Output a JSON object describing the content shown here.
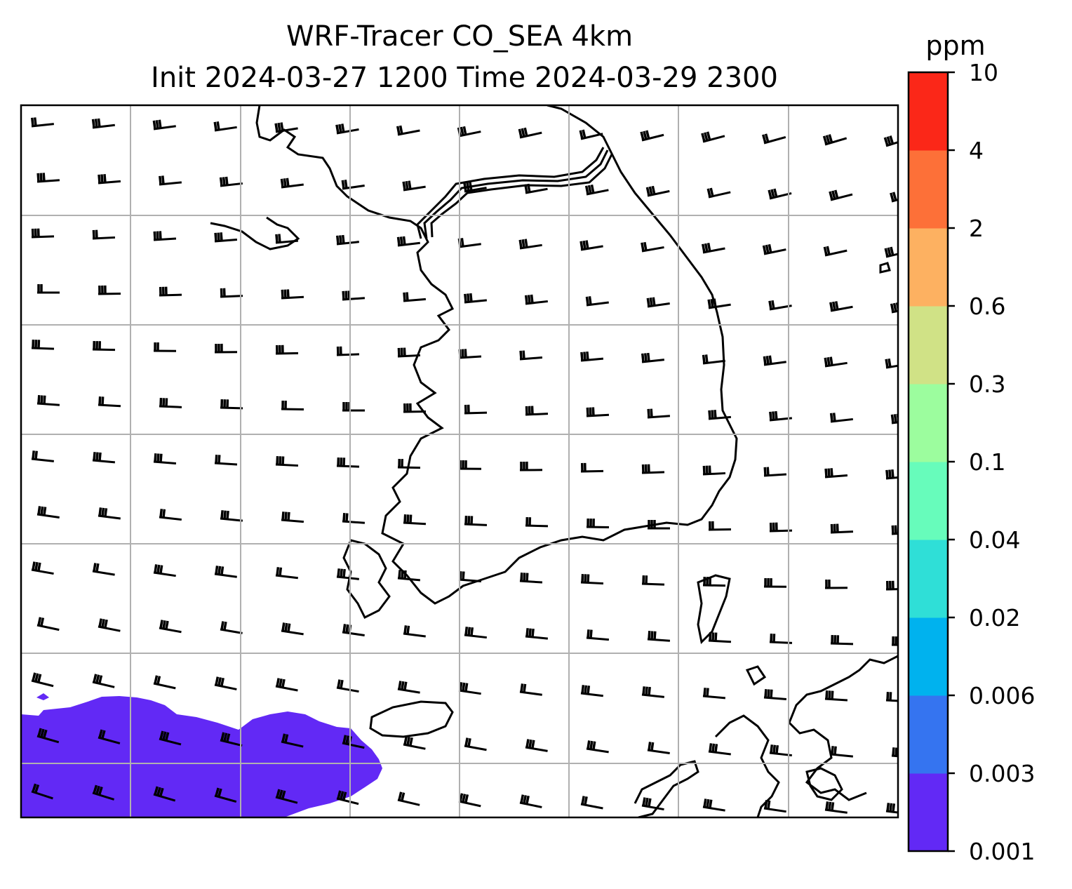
{
  "title": {
    "line1": "WRF-Tracer CO_SEA 4km",
    "line2": "Init 2024-03-27 1200 Time 2024-03-29 2300"
  },
  "colorbar": {
    "unit": "ppm",
    "levels": [
      "0.001",
      "0.003",
      "0.006",
      "0.02",
      "0.04",
      "0.1",
      "0.3",
      "0.6",
      "2",
      "4",
      "10"
    ],
    "colors": [
      "#6229f5",
      "#3574f0",
      "#00b2ee",
      "#2fdfd7",
      "#67fcbb",
      "#9cfd9e",
      "#d0e286",
      "#fdb161",
      "#fd7038",
      "#fb2718"
    ]
  },
  "map": {
    "projection_grid": true,
    "concentration_field": {
      "level_index": 0,
      "region": "southwest corner"
    },
    "wind_barbs": {
      "direction": "westerly",
      "barb_style": "multiple flags"
    }
  }
}
